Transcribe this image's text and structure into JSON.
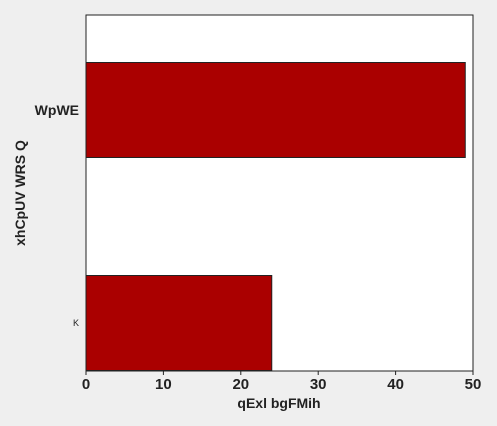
{
  "chart_data": {
    "type": "bar",
    "orientation": "horizontal",
    "title": "",
    "xlabel": "qExl bgFMih",
    "ylabel": "xhCpUV WRS Q",
    "categories": [
      "WpWE",
      "K"
    ],
    "values": [
      49,
      24
    ],
    "xlim": [
      0,
      50
    ],
    "xticks": [
      "0",
      "10",
      "20",
      "30",
      "40",
      "50"
    ],
    "grid": false,
    "legend": "none",
    "colors": {
      "bar": "#aa0000",
      "bar_edge": "#222222",
      "plot_bg": "#ffffff",
      "figure_bg": "#efefef"
    }
  }
}
